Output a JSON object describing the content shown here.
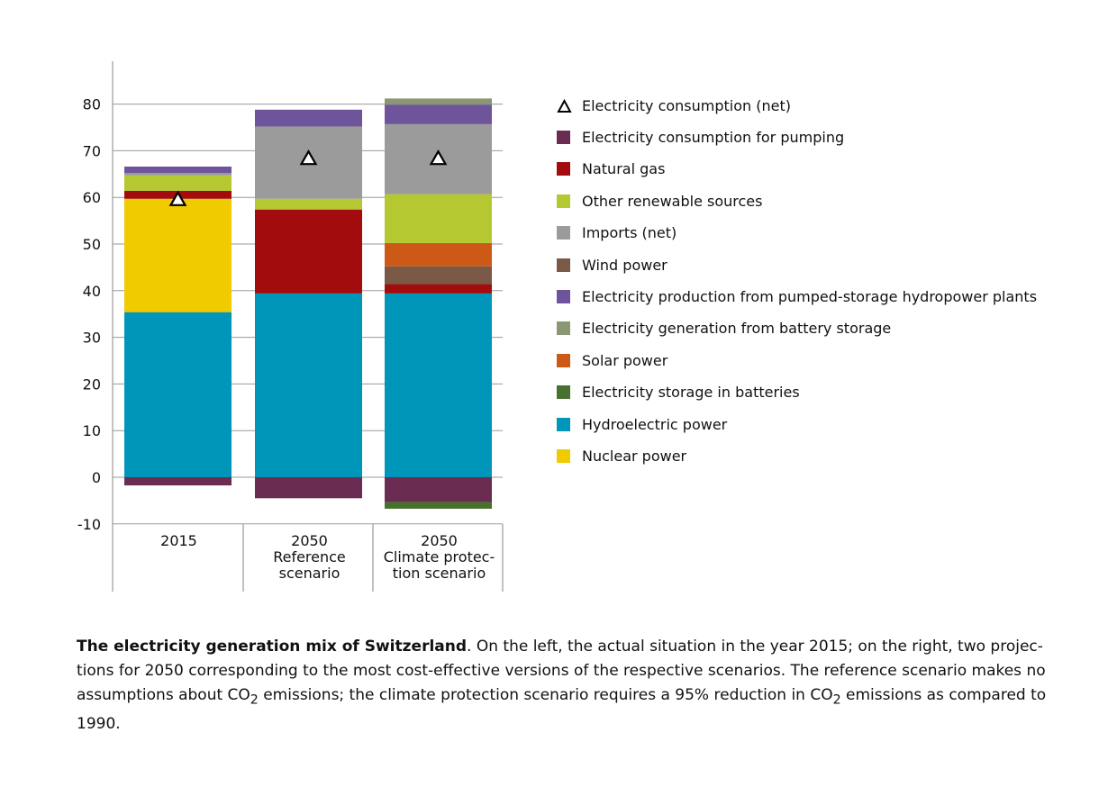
{
  "chart_data": {
    "type": "bar",
    "stacked": true,
    "categories": [
      {
        "line1": "2015",
        "line2": "",
        "line3": ""
      },
      {
        "line1": "2050",
        "line2": "Reference",
        "line3": "scenario"
      },
      {
        "line1": "2050",
        "line2": "Climate protec-",
        "line3": "tion scenario"
      }
    ],
    "ylim": [
      -10,
      80
    ],
    "yticks": [
      -10,
      0,
      10,
      20,
      30,
      40,
      50,
      60,
      70,
      80
    ],
    "grid": true,
    "legend_position": "right",
    "series": [
      {
        "name": "Hydroelectric power",
        "color": "#0096ba",
        "values": [
          35.4,
          39.4,
          39.4
        ]
      },
      {
        "name": "Nuclear power",
        "color": "#f0cb00",
        "values": [
          24.3,
          0,
          0
        ]
      },
      {
        "name": "Natural gas",
        "color": "#a20c0c",
        "values": [
          1.7,
          18.0,
          2.0
        ]
      },
      {
        "name": "Wind power",
        "color": "#7a5a46",
        "values": [
          0,
          0,
          3.8
        ]
      },
      {
        "name": "Solar power",
        "color": "#cc5a16",
        "values": [
          0,
          0,
          5.0
        ]
      },
      {
        "name": "Other renewable sources",
        "color": "#b5c832",
        "values": [
          3.3,
          2.3,
          10.5
        ]
      },
      {
        "name": "Imports (net)",
        "color": "#9b9b9b",
        "values": [
          0.5,
          15.5,
          15.0
        ]
      },
      {
        "name": "Electricity production from pumped-storage hydropower plants",
        "color": "#6e559b",
        "values": [
          1.4,
          3.6,
          4.2
        ]
      },
      {
        "name": "Electricity generation from battery storage",
        "color": "#8b9772",
        "values": [
          0,
          0,
          1.3
        ]
      },
      {
        "name": "Electricity consumption for pumping",
        "color": "#6b2c52",
        "values": [
          -1.75,
          -4.5,
          -5.3
        ]
      },
      {
        "name": "Electricity storage in batteries",
        "color": "#47712e",
        "values": [
          0,
          0,
          -1.45
        ]
      }
    ],
    "markers": {
      "name": "Electricity consumption (net)",
      "shape": "triangle",
      "values": [
        59.5,
        68.3,
        68.3
      ]
    }
  },
  "legend": [
    {
      "label": "Electricity consumption (net)",
      "marker": "triangle"
    },
    {
      "label": "Electricity consumption for pumping",
      "color": "#6b2c52"
    },
    {
      "label": "Natural gas",
      "color": "#a20c0c"
    },
    {
      "label": "Other renewable sources",
      "color": "#b5c832"
    },
    {
      "label": "Imports (net)",
      "color": "#9b9b9b"
    },
    {
      "label": "Wind power",
      "color": "#7a5a46"
    },
    {
      "label": "Electricity production from pumped-storage hydropower plants",
      "color": "#6e559b"
    },
    {
      "label": "Electricity generation from battery storage",
      "color": "#8b9772"
    },
    {
      "label": "Solar power",
      "color": "#cc5a16"
    },
    {
      "label": "Electricity storage in batteries",
      "color": "#47712e"
    },
    {
      "label": "Hydroelectric power",
      "color": "#0096ba"
    },
    {
      "label": "Nuclear power",
      "color": "#f0cb00"
    }
  ],
  "caption": {
    "title": "The electricity generation mix of Switzerland",
    "text1": ". On the left, the actual situation in the year 2015; on the right, two projec-tions for 2050 corresponding to the most cost-effective versions of the respective scenarios. The reference scenario makes no assumptions about CO",
    "sub1": "2",
    "text2": " emissions; the climate protection scenario requires a 95% reduction in CO",
    "sub2": "2",
    "text3": " emissions as compared to 1990."
  }
}
